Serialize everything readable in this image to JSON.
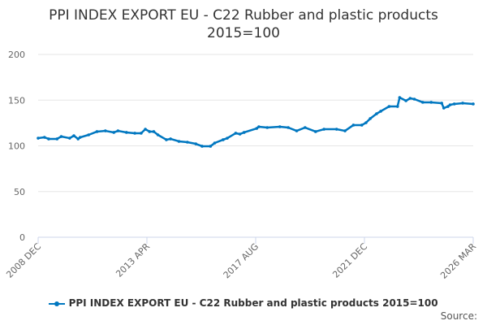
{
  "chart_data": {
    "type": "line",
    "title": "PPI INDEX EXPORT EU - C22 Rubber and plastic products 2015=100",
    "title_lines": [
      "PPI INDEX EXPORT EU - C22 Rubber and plastic products",
      "2015=100"
    ],
    "ylim": [
      0,
      200
    ],
    "yticks": [
      0,
      50,
      100,
      150,
      200
    ],
    "xtick_labels": [
      "2008 DEC",
      "2013 APR",
      "2017 AUG",
      "2021 DEC",
      "2026 MAR"
    ],
    "grid": true,
    "legend_position": "bottom",
    "color": "#0077c0",
    "series": [
      {
        "name": "PPI INDEX EXPORT EU - C22 Rubber and plastic products 2015=100",
        "x": [
          "2008-12",
          "2009-03",
          "2009-05",
          "2009-09",
          "2009-11",
          "2010-03",
          "2010-05",
          "2010-07",
          "2010-08",
          "2010-12",
          "2011-04",
          "2011-08",
          "2011-12",
          "2012-02",
          "2012-06",
          "2012-10",
          "2013-01",
          "2013-03",
          "2013-05",
          "2013-07",
          "2013-09",
          "2014-01",
          "2014-03",
          "2014-07",
          "2014-11",
          "2015-03",
          "2015-06",
          "2015-10",
          "2015-12",
          "2016-04",
          "2016-06",
          "2016-10",
          "2016-12",
          "2017-02",
          "2017-08",
          "2017-09",
          "2018-01",
          "2018-07",
          "2018-11",
          "2019-03",
          "2019-07",
          "2019-12",
          "2020-04",
          "2020-10",
          "2021-02",
          "2021-06",
          "2021-10",
          "2021-12",
          "2022-02",
          "2022-05",
          "2022-07",
          "2022-11",
          "2023-03",
          "2023-04",
          "2023-07",
          "2023-09",
          "2023-11",
          "2024-03",
          "2024-07",
          "2024-12",
          "2025-01",
          "2025-03",
          "2025-04",
          "2025-06",
          "2025-10",
          "2026-03"
        ],
        "values": [
          108.4,
          109.3,
          107.6,
          107.6,
          110.2,
          108.4,
          111.1,
          107.6,
          109.3,
          112,
          115.6,
          116.4,
          114.7,
          116.4,
          114.7,
          113.8,
          113.8,
          118.2,
          115.6,
          115.6,
          112,
          106.7,
          107.6,
          104.9,
          104,
          102.2,
          99.6,
          99.6,
          103.1,
          106.7,
          108.4,
          113.8,
          112.9,
          114.7,
          119.1,
          120.9,
          120,
          120.9,
          120,
          116.4,
          120,
          115.6,
          118.2,
          118.2,
          116.4,
          122.7,
          122.7,
          125.3,
          129.8,
          135.1,
          137.8,
          143.1,
          143.1,
          152.9,
          149.3,
          152,
          151.1,
          147.6,
          147.6,
          146.7,
          141.3,
          143.1,
          144.9,
          145.8,
          146.7,
          145.8
        ]
      }
    ]
  },
  "source_label": "Source:"
}
